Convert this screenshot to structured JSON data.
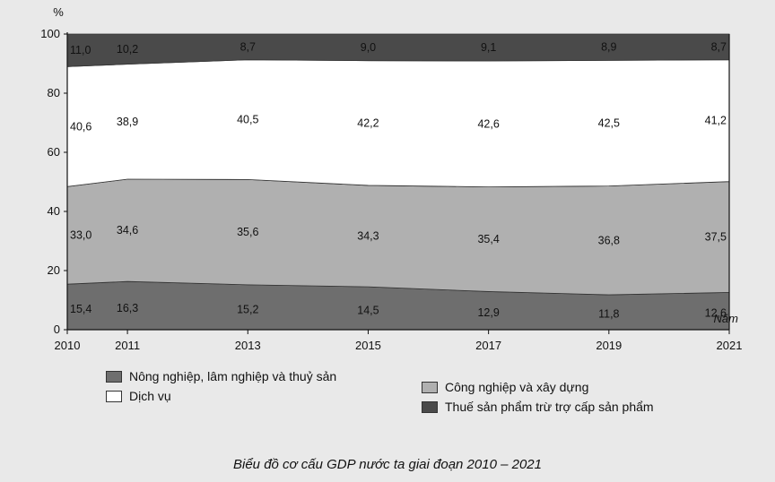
{
  "chart_data": {
    "type": "area",
    "title": "Biểu đồ cơ cấu GDP nước ta giai đoạn 2010 – 2021",
    "ylabel": "%",
    "xlabel": "Năm",
    "x": [
      2010,
      2011,
      2013,
      2015,
      2017,
      2019,
      2021
    ],
    "ylim": [
      0,
      100
    ],
    "yticks": [
      0,
      20,
      40,
      60,
      80,
      100
    ],
    "series": [
      {
        "name": "Nông nghiệp, lâm nghiệp và thuỷ sản",
        "color": "#6e6e6e",
        "values": [
          15.4,
          16.3,
          15.2,
          14.5,
          12.9,
          11.8,
          12.6
        ]
      },
      {
        "name": "Công nghiệp và xây dựng",
        "color": "#b0b0b0",
        "values": [
          33.0,
          34.6,
          35.6,
          34.3,
          35.4,
          36.8,
          37.5
        ]
      },
      {
        "name": "Dịch vụ",
        "color": "#ffffff",
        "values": [
          40.6,
          38.9,
          40.5,
          42.2,
          42.6,
          42.5,
          41.2
        ]
      },
      {
        "name": "Thuế sản phẩm trừ trợ cấp sản phẩm",
        "color": "#4a4a4a",
        "values": [
          11.0,
          10.2,
          8.7,
          9.0,
          9.1,
          8.9,
          8.7
        ]
      }
    ],
    "labels": [
      [
        "15,4",
        "16,3",
        "15,2",
        "14,5",
        "12,9",
        "11,8",
        "12,6"
      ],
      [
        "33,0",
        "34,6",
        "35,6",
        "34,3",
        "35,4",
        "36,8",
        "37,5"
      ],
      [
        "40,6",
        "38,9",
        "40,5",
        "42,2",
        "42,6",
        "42,5",
        "41,2"
      ],
      [
        "11,0",
        "10,2",
        "8,7",
        "9,0",
        "9,1",
        "8,9",
        "8,7"
      ]
    ],
    "legend_position": "bottom",
    "grid": false
  },
  "legend": {
    "agriculture": "Nông nghiệp, lâm nghiệp và thuỷ sản",
    "industry": "Công nghiệp và xây dựng",
    "services": "Dịch vụ",
    "taxes": "Thuế sản phẩm trừ trợ cấp sản phẩm"
  },
  "caption": "Biểu đồ cơ cấu GDP nước ta giai đoạn 2010 – 2021"
}
